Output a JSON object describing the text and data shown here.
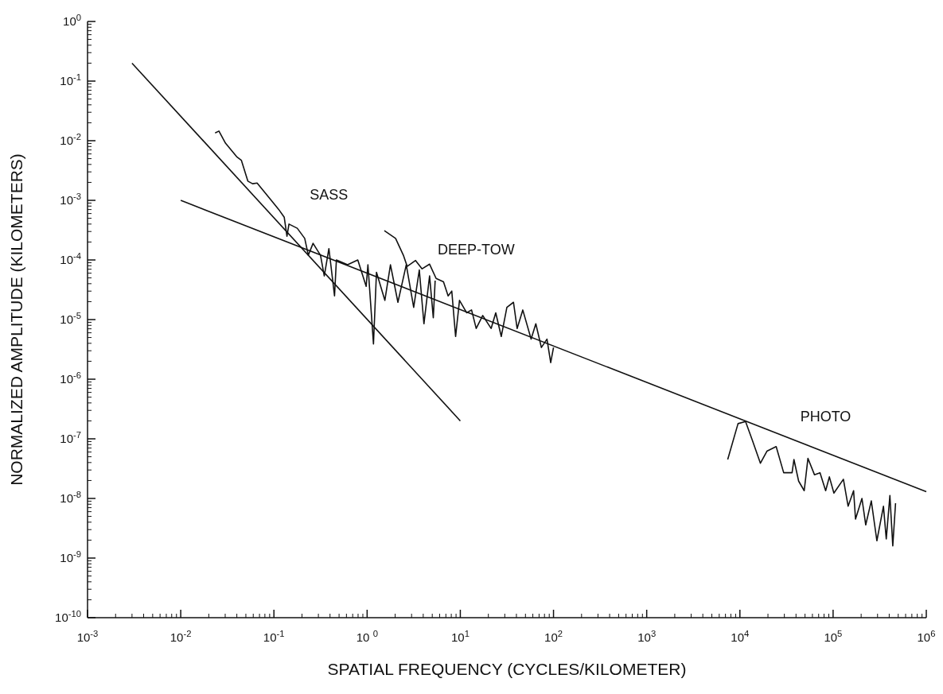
{
  "chart_data": {
    "type": "line",
    "log": "xy",
    "xlabel": "SPATIAL FREQUENCY (CYCLES/KILOMETER)",
    "ylabel": "NORMALIZED AMPLITUDE (KILOMETERS)",
    "xlim": [
      0.001,
      1000000
    ],
    "ylim": [
      1e-10,
      1
    ],
    "xticks": [
      {
        "value": 0.001,
        "label": "10$^{-3}$"
      },
      {
        "value": 0.01,
        "label": "10$^{-2}$"
      },
      {
        "value": 0.1,
        "label": "10$^{-1}$"
      },
      {
        "value": 1,
        "label": "10 $^{0}$"
      },
      {
        "value": 10,
        "label": "10$^{1}$"
      },
      {
        "value": 100,
        "label": "10$^{2}$"
      },
      {
        "value": 1000,
        "label": "10$^{3}$"
      },
      {
        "value": 10000,
        "label": "10$^{4}$"
      },
      {
        "value": 100000,
        "label": "10$^{5}$"
      },
      {
        "value": 1000000,
        "label": "10$^{6}$"
      }
    ],
    "yticks": [
      {
        "value": 1,
        "label": "10$^{0}$"
      },
      {
        "value": 0.1,
        "label": "10$^{-1}$"
      },
      {
        "value": 0.01,
        "label": "10$^{-2}$"
      },
      {
        "value": 0.001,
        "label": "10$^{-3}$"
      },
      {
        "value": 0.0001,
        "label": "10$^{-4}$"
      },
      {
        "value": 1e-05,
        "label": "10$^{-5}$"
      },
      {
        "value": 1e-06,
        "label": "10$^{-6}$"
      },
      {
        "value": 1e-07,
        "label": "10$^{-7}$"
      },
      {
        "value": 1e-08,
        "label": "10$^{-8}$"
      },
      {
        "value": 1e-09,
        "label": "10$^{-9}$"
      },
      {
        "value": 1e-10,
        "label": "10$^{-10}$"
      }
    ],
    "series": [
      {
        "name": "SASS",
        "color": "#111111",
        "x": [
          0.0234,
          0.0257,
          0.0302,
          0.0398,
          0.0447,
          0.0525,
          0.059,
          0.066,
          0.112,
          0.129,
          0.138,
          0.145,
          0.178,
          0.214,
          0.234,
          0.263,
          0.316,
          0.347,
          0.389,
          0.447,
          0.468,
          0.617,
          0.794,
          0.977,
          1.02,
          1.17,
          1.26,
          1.55,
          1.78,
          2.14,
          2.63,
          3.16,
          3.63,
          4.07,
          4.68,
          5.13,
          5.37
        ],
        "values": [
          0.0135,
          0.0145,
          0.0091,
          0.0054,
          0.0047,
          0.0021,
          0.0019,
          0.00195,
          0.00071,
          0.00052,
          0.00025,
          0.0004,
          0.00034,
          0.00023,
          0.00012,
          0.00019,
          0.00012,
          5.4e-05,
          0.000155,
          2.5e-05,
          0.0001,
          8.3e-05,
          0.0001,
          3.6e-05,
          8.3e-05,
          3.9e-06,
          6.2e-05,
          2.1e-05,
          8.3e-05,
          1.95e-05,
          8.3e-05,
          1.6e-05,
          6.8e-05,
          8.5e-06,
          5.4e-05,
          1.07e-05,
          4.5e-05
        ]
      },
      {
        "name": "DEEP-TOW",
        "color": "#111111",
        "x": [
          1.53,
          2.02,
          2.45,
          2.69,
          3.31,
          3.89,
          4.68,
          5.5,
          6.6,
          7.4,
          8.1,
          8.9,
          9.8,
          11.7,
          13.2,
          14.8,
          17.4,
          21.4,
          24,
          27.5,
          31.6,
          37.2,
          40.7,
          46.8,
          57.5,
          64.6,
          74.1,
          85.1,
          93.3,
          100
        ],
        "values": [
          0.00031,
          0.00023,
          0.00012,
          7.8e-05,
          9.8e-05,
          7.1e-05,
          8.5e-05,
          4.9e-05,
          4.3e-05,
          2.5e-05,
          3e-05,
          5.2e-06,
          2.1e-05,
          1.3e-05,
          1.45e-05,
          7.1e-06,
          1.17e-05,
          7.1e-06,
          1.3e-05,
          5.2e-06,
          1.6e-05,
          1.95e-05,
          7.1e-06,
          1.45e-05,
          4.7e-06,
          8.5e-06,
          3.4e-06,
          4.7e-06,
          1.9e-06,
          3.4e-06
        ]
      },
      {
        "name": "PHOTO",
        "color": "#111111",
        "x": [
          7400,
          9550,
          11500,
          13500,
          16600,
          19500,
          24500,
          29500,
          36300,
          38000,
          42700,
          49000,
          53700,
          63100,
          72400,
          83200,
          91200,
          102000,
          129000,
          145000,
          166000,
          174000,
          204000,
          224000,
          257000,
          295000,
          347000,
          372000,
          407000,
          437000,
          468000
        ],
        "values": [
          4.5e-08,
          1.8e-07,
          1.95e-07,
          9.8e-08,
          3.9e-08,
          6.2e-08,
          7.4e-08,
          2.7e-08,
          2.7e-08,
          4.5e-08,
          1.95e-08,
          1.35e-08,
          4.7e-08,
          2.5e-08,
          2.7e-08,
          1.35e-08,
          2.3e-08,
          1.23e-08,
          2.1e-08,
          7.4e-09,
          1.35e-08,
          4.5e-09,
          1e-08,
          3.6e-09,
          9.1e-09,
          1.95e-09,
          7.4e-09,
          2.1e-09,
          1.12e-08,
          1.6e-09,
          8.3e-09
        ]
      },
      {
        "color": "#111111",
        "x": [
          0.003,
          10
        ],
        "values": [
          0.2,
          2e-07
        ]
      },
      {
        "color": "#111111",
        "x": [
          0.01,
          1000000
        ],
        "values": [
          0.001,
          1.3e-08
        ]
      }
    ]
  }
}
